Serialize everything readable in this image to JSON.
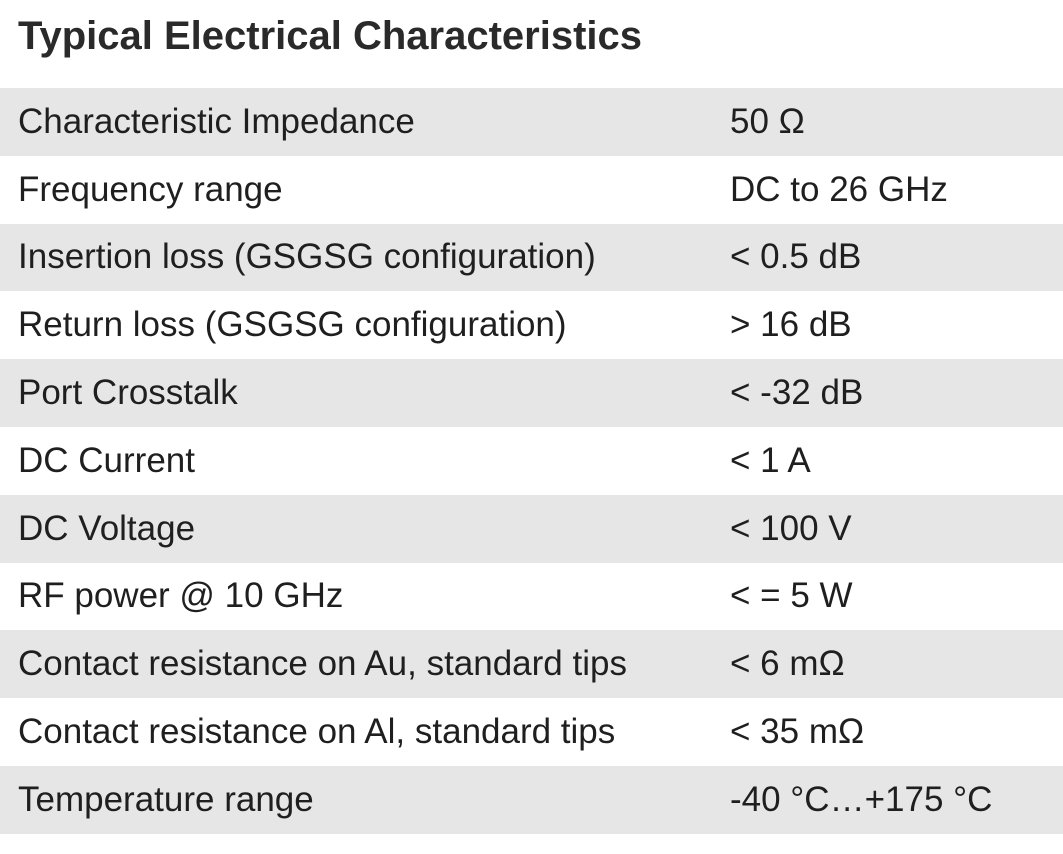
{
  "title": "Typical Electrical Characteristics",
  "rows": [
    {
      "label": "Characteristic Impedance",
      "value": "50 Ω"
    },
    {
      "label": "Frequency range",
      "value": "DC to 26 GHz"
    },
    {
      "label": "Insertion loss (GSGSG configuration)",
      "value": "< 0.5 dB"
    },
    {
      "label": "Return loss (GSGSG configuration)",
      "value": "> 16 dB"
    },
    {
      "label": "Port Crosstalk",
      "value": "< -32 dB"
    },
    {
      "label": "DC Current",
      "value": "< 1 A"
    },
    {
      "label": "DC Voltage",
      "value": "< 100 V"
    },
    {
      "label": "RF power @ 10 GHz",
      "value": "< = 5 W"
    },
    {
      "label": "Contact resistance on Au, standard tips",
      "value": "< 6 mΩ"
    },
    {
      "label": "Contact resistance on Al, standard tips",
      "value": "< 35 mΩ"
    },
    {
      "label": "Temperature range",
      "value": "-40 °C…+175 °C"
    }
  ]
}
